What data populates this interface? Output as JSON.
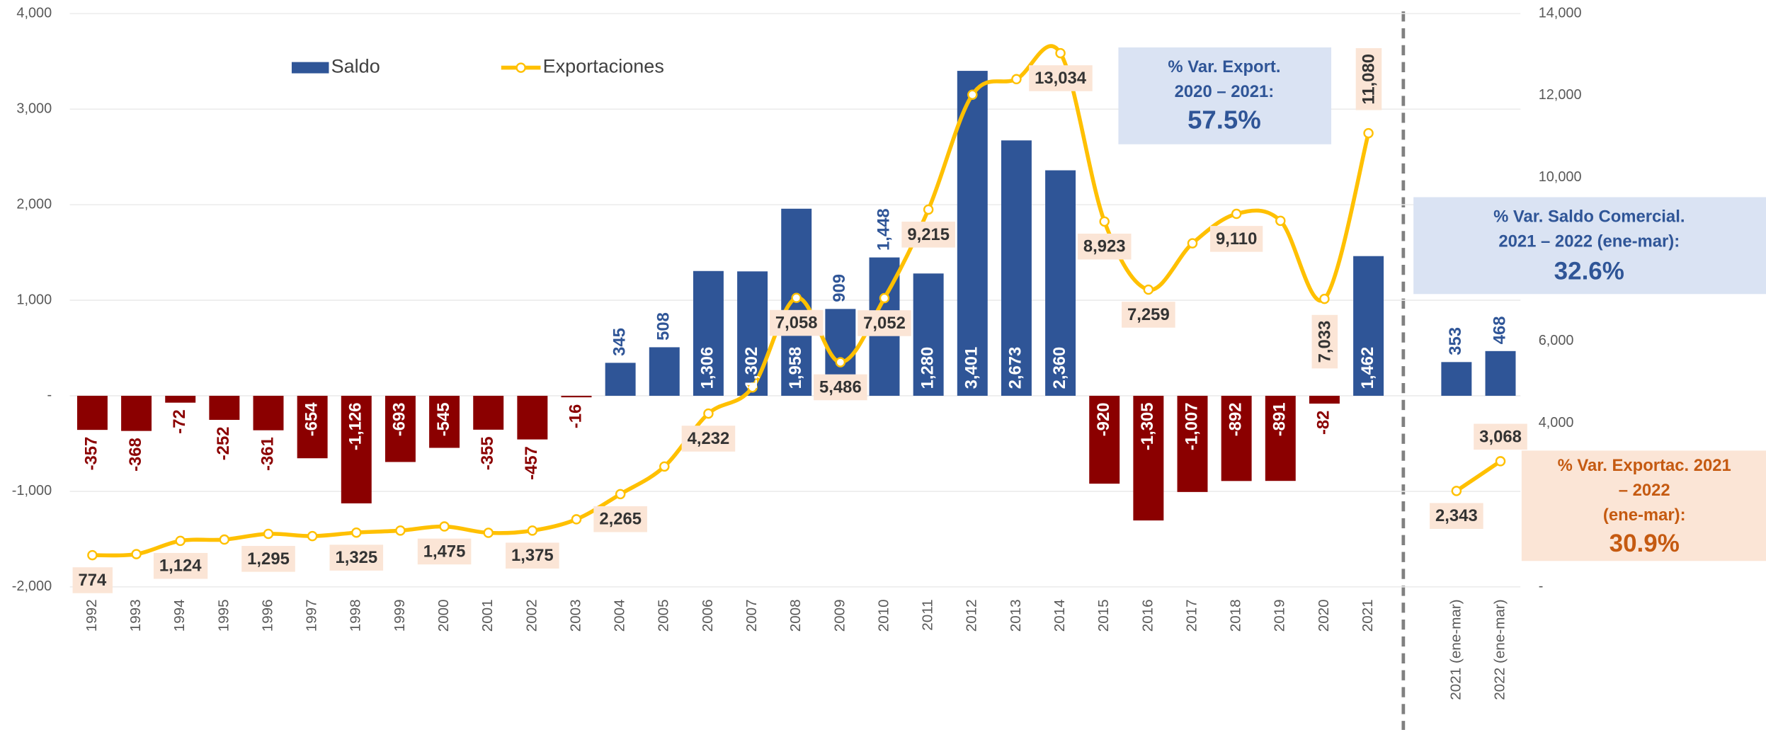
{
  "chart_data": {
    "type": "bar",
    "categories": [
      "1992",
      "1993",
      "1994",
      "1995",
      "1996",
      "1997",
      "1998",
      "1999",
      "2000",
      "2001",
      "2002",
      "2003",
      "2004",
      "2005",
      "2006",
      "2007",
      "2008",
      "2009",
      "2010",
      "2011",
      "2012",
      "2013",
      "2014",
      "2015",
      "2016",
      "2017",
      "2018",
      "2019",
      "2020",
      "2021",
      null,
      "2021 (ene-mar)",
      "2022 (ene-mar)"
    ],
    "series": [
      {
        "name": "Saldo",
        "color": "#2f5597",
        "negative_color": "#8b0000",
        "values": [
          -357,
          -368,
          -72,
          -252,
          -361,
          -654,
          -1126,
          -693,
          -545,
          -355,
          -457,
          -16,
          345,
          508,
          1306,
          1302,
          1958,
          909,
          1448,
          1280,
          3401,
          2673,
          2360,
          -920,
          -1305,
          -1007,
          -892,
          -891,
          -82,
          1462,
          null,
          353,
          468
        ],
        "value_labels": [
          "-357",
          "-368",
          "-72",
          "-252",
          "-361",
          "-654",
          "-1,126",
          "-693",
          "-545",
          "-355",
          "-457",
          "-16",
          "345",
          "508",
          "1,306",
          "1,302",
          "1,958",
          "909",
          "1,448",
          "1,280",
          "3,401",
          "2,673",
          "2,360",
          "-920",
          "-1,305",
          "-1,007",
          "-892",
          "-891",
          "-82",
          "1,462",
          null,
          "353",
          "468"
        ]
      },
      {
        "name": "Exportaciones",
        "type": "line",
        "axis": "y2",
        "color": "#ffc000",
        "values": [
          774,
          800,
          1124,
          1155,
          1295,
          1240,
          1325,
          1375,
          1475,
          1320,
          1375,
          1650,
          2265,
          2940,
          4232,
          4870,
          7058,
          5486,
          7052,
          9215,
          12020,
          12400,
          13034,
          8923,
          7259,
          8390,
          9110,
          8940,
          7033,
          11080,
          null,
          2343,
          3068
        ],
        "value_labels": [
          "774",
          null,
          "1,124",
          null,
          "1,295",
          null,
          "1,325",
          null,
          "1,475",
          null,
          "1,375",
          null,
          "2,265",
          null,
          "4,232",
          null,
          "7,058",
          "5,486",
          "7,052",
          "9,215",
          null,
          null,
          "13,034",
          "8,923",
          "7,259",
          null,
          "9,110",
          null,
          "7,033",
          "11,080",
          null,
          "2,343",
          "3,068"
        ]
      }
    ],
    "ylim": [
      -2000,
      4000
    ],
    "yticks": [
      {
        "value": -2000,
        "label": "-2,000"
      },
      {
        "value": -1000,
        "label": "-1,000"
      },
      {
        "value": 0,
        "label": "-"
      },
      {
        "value": 1000,
        "label": "1,000"
      },
      {
        "value": 2000,
        "label": "2,000"
      },
      {
        "value": 3000,
        "label": "3,000"
      },
      {
        "value": 4000,
        "label": "4,000"
      }
    ],
    "y2lim": [
      0,
      14000
    ],
    "y2ticks": [
      {
        "value": 0,
        "label": "-"
      },
      {
        "value": 4000,
        "label": "4,000"
      },
      {
        "value": 6000,
        "label": "6,000"
      },
      {
        "value": 10000,
        "label": "10,000"
      },
      {
        "value": 12000,
        "label": "12,000"
      },
      {
        "value": 14000,
        "label": "14,000"
      }
    ],
    "grid": true,
    "annotations": [
      {
        "lines": [
          "% Var. Export.",
          "2020 – 2021:"
        ],
        "highlight": "57.5%"
      },
      {
        "lines": [
          "% Var. Saldo Comercial.",
          "2021 – 2022 (ene-mar):"
        ],
        "highlight": "32.6%"
      },
      {
        "lines": [
          "% Var. Exportac. 2021",
          "– 2022",
          "(ene-mar):"
        ],
        "highlight": "30.9%"
      }
    ]
  }
}
